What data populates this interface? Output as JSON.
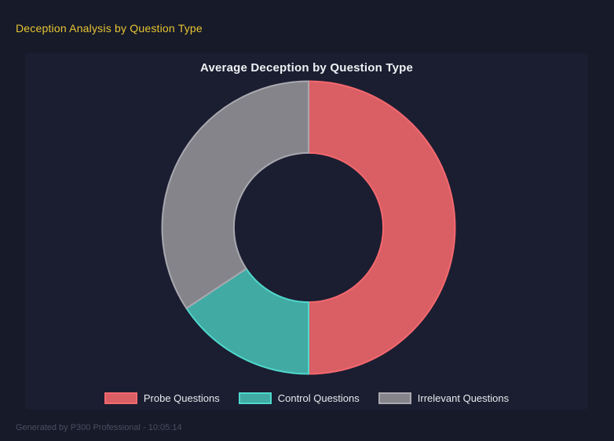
{
  "page": {
    "title": "Deception Analysis by Question Type",
    "footer": "Generated by P300 Professional - 10:05:14"
  },
  "colors": {
    "page_bg": "#161a29",
    "panel_bg": "#1b1e30",
    "title": "#e8c434",
    "chart_title": "#eef0f4",
    "legend_text": "#e8eaee",
    "footer_text": "#4a5060"
  },
  "chart_data": {
    "type": "pie",
    "variant": "doughnut",
    "title": "Average Deception by Question Type",
    "categories": [
      "Probe Questions",
      "Control Questions",
      "Irrelevant Questions"
    ],
    "values_percent": [
      50.0,
      15.7,
      34.3
    ],
    "colors": {
      "fills": [
        "#d95f64",
        "#41aaa3",
        "#85848a"
      ],
      "borders": [
        "#f4686f",
        "#4fd8cc",
        "#a9a8b0"
      ]
    },
    "legend_position": "bottom",
    "cutout_percent": 51,
    "start_angle_deg": 0,
    "direction": "clockwise"
  }
}
